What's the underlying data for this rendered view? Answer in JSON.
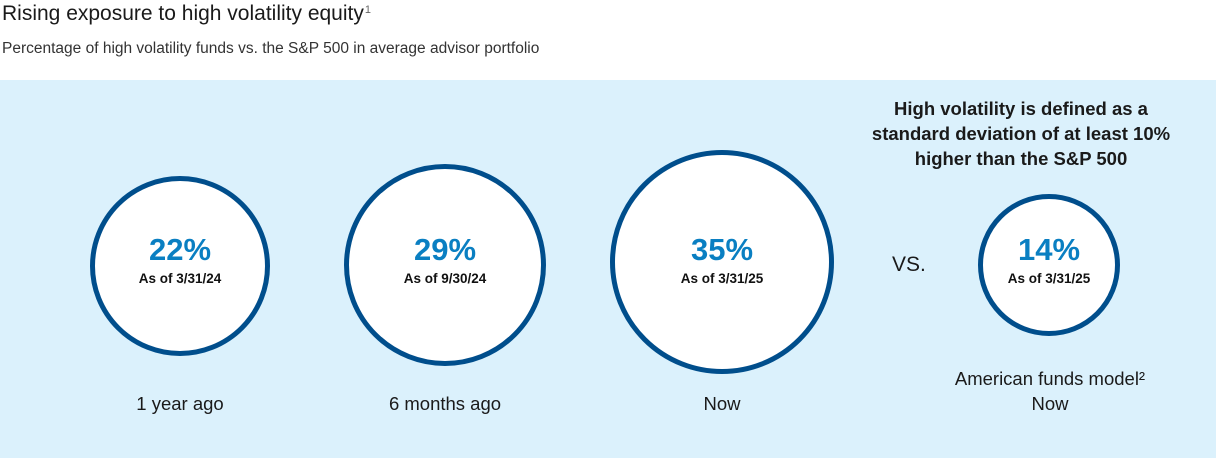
{
  "header": {
    "title": "Rising exposure to high volatility equity",
    "title_footnote": "1",
    "subtitle": "Percentage of high volatility funds vs. the S&P 500 in average advisor portfolio"
  },
  "colors": {
    "panel_background": "#dbf1fc",
    "circle_border": "#004e8c",
    "percent_text": "#0a7fc2"
  },
  "chart_data": {
    "type": "bubble",
    "series": [
      {
        "value": 22,
        "unit": "%",
        "label": "22%",
        "as_of": "As of 3/31/24",
        "period": "1 year ago"
      },
      {
        "value": 29,
        "unit": "%",
        "label": "29%",
        "as_of": "As of 9/30/24",
        "period": "6 months ago"
      },
      {
        "value": 35,
        "unit": "%",
        "label": "35%",
        "as_of": "As of 3/31/25",
        "period": "Now"
      }
    ],
    "separator": "VS.",
    "comparison": {
      "value": 14,
      "unit": "%",
      "label": "14%",
      "as_of": "As of 3/31/25",
      "period_line1": "American funds model²",
      "period_line2": "Now"
    },
    "definition_note": {
      "line1": "High volatility is defined as a",
      "line2": "standard deviation of at least 10%",
      "line3": "higher than the S&P 500"
    }
  }
}
